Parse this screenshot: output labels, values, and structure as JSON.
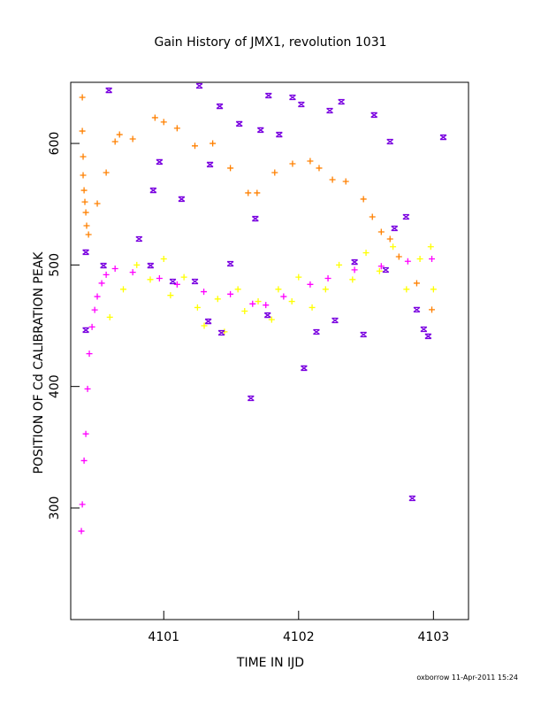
{
  "chart_data": {
    "type": "scatter",
    "title": "Gain History of JMX1, revolution 1031",
    "xlabel": "TIME IN IJD",
    "ylabel": "POSITION OF Cd CALIBRATION PEAK",
    "footer": "oxborrow 11-Apr-2011 15:24",
    "xlim": [
      4100.31,
      4103.26
    ],
    "ylim": [
      208.2,
      650.3
    ],
    "xticks": [
      4101,
      4102,
      4103
    ],
    "yticks": [
      300,
      400,
      500,
      600
    ],
    "series": [
      {
        "color": "#ff8000",
        "marker": "plus",
        "x": [
          4100.396,
          4100.396,
          4100.402,
          4100.402,
          4100.409,
          4100.415,
          4100.422,
          4100.428,
          4100.442,
          4100.507,
          4100.573,
          4100.639,
          4100.672,
          4100.77,
          4100.935,
          4101.0,
          4101.099,
          4101.231,
          4101.363,
          4101.494,
          4101.626,
          4101.692,
          4101.823,
          4101.955,
          4102.086,
          4102.152,
          4102.251,
          4102.35,
          4102.481,
          4102.547,
          4102.613,
          4102.678,
          4102.744,
          4102.876,
          4102.988
        ],
        "values": [
          637.9,
          610.2,
          589.1,
          573.8,
          561.4,
          551.9,
          543.2,
          532.3,
          525,
          550.5,
          576,
          601.5,
          607.3,
          603.7,
          621.2,
          617.6,
          612.5,
          598,
          600,
          579.7,
          559.3,
          559.3,
          576,
          583.3,
          585.5,
          579.7,
          570.2,
          568.7,
          554.2,
          539.6,
          527.2,
          521.4,
          506.8,
          485,
          463.2
        ]
      },
      {
        "color": "#ff00ff",
        "marker": "plus",
        "x": [
          4100.389,
          4100.396,
          4100.409,
          4100.422,
          4100.435,
          4100.448,
          4100.468,
          4100.488,
          4100.507,
          4100.54,
          4100.573,
          4100.639,
          4100.77,
          4100.968,
          4101.099,
          4101.297,
          4101.494,
          4101.659,
          4101.757,
          4101.889,
          4102.086,
          4102.218,
          4102.415,
          4102.613,
          4102.81,
          4102.988
        ],
        "values": [
          281,
          303,
          339,
          361,
          398,
          427,
          449,
          463,
          474,
          485,
          492,
          497,
          494,
          489,
          484,
          478,
          476,
          468,
          467,
          474,
          484,
          489,
          496,
          499,
          503,
          505
        ]
      },
      {
        "color": "#ffff00",
        "marker": "plus",
        "x": [
          4100.6,
          4100.7,
          4100.8,
          4100.9,
          4101.0,
          4101.05,
          4101.15,
          4101.25,
          4101.3,
          4101.4,
          4101.45,
          4101.55,
          4101.6,
          4101.7,
          4101.8,
          4101.85,
          4101.95,
          4102.0,
          4102.1,
          4102.2,
          4102.3,
          4102.4,
          4102.5,
          4102.6,
          4102.7,
          4102.8,
          4102.9,
          4102.98,
          4103.0
        ],
        "values": [
          457,
          480,
          500,
          488,
          505,
          475,
          490,
          465,
          450,
          472,
          445,
          480,
          462,
          470,
          455,
          480,
          470,
          490,
          465,
          480,
          500,
          488,
          510,
          495,
          515,
          480,
          505,
          515,
          480
        ]
      },
      {
        "color": "#7a00e0",
        "marker": "cross",
        "x": [
          4100.593,
          4101.264,
          4101.56,
          4101.415,
          4101.777,
          4101.955,
          4102.02,
          4102.231,
          4102.317,
          4102.56,
          4102.678,
          4103.073,
          4100.968,
          4100.922,
          4101.132,
          4101.343,
          4101.679,
          4101.718,
          4101.856,
          4100.817,
          4100.553,
          4101.33,
          4101.428,
          4101.646,
          4102.04,
          4102.132,
          4102.27,
          4102.481,
          4102.843,
          4102.876,
          4102.961,
          4102.928,
          4102.797,
          4100.422,
          4100.422,
          4101.067,
          4101.77,
          4101.231,
          4102.415,
          4102.646,
          4102.711,
          4101.494,
          4100.902
        ],
        "values": [
          643.7,
          647.4,
          616.1,
          630.6,
          639.4,
          637.9,
          632.1,
          627,
          634.3,
          623.4,
          601.5,
          605.1,
          584.8,
          561.4,
          554.2,
          582.6,
          538.1,
          611,
          607.3,
          521.4,
          499.5,
          453.6,
          444.2,
          390.3,
          415.1,
          444.9,
          454.4,
          442.7,
          308,
          463.2,
          441.3,
          447.1,
          539.6,
          510.5,
          446.4,
          486.4,
          458.7,
          486.4,
          502.4,
          495.9,
          530.1,
          501,
          499.5
        ]
      }
    ]
  }
}
